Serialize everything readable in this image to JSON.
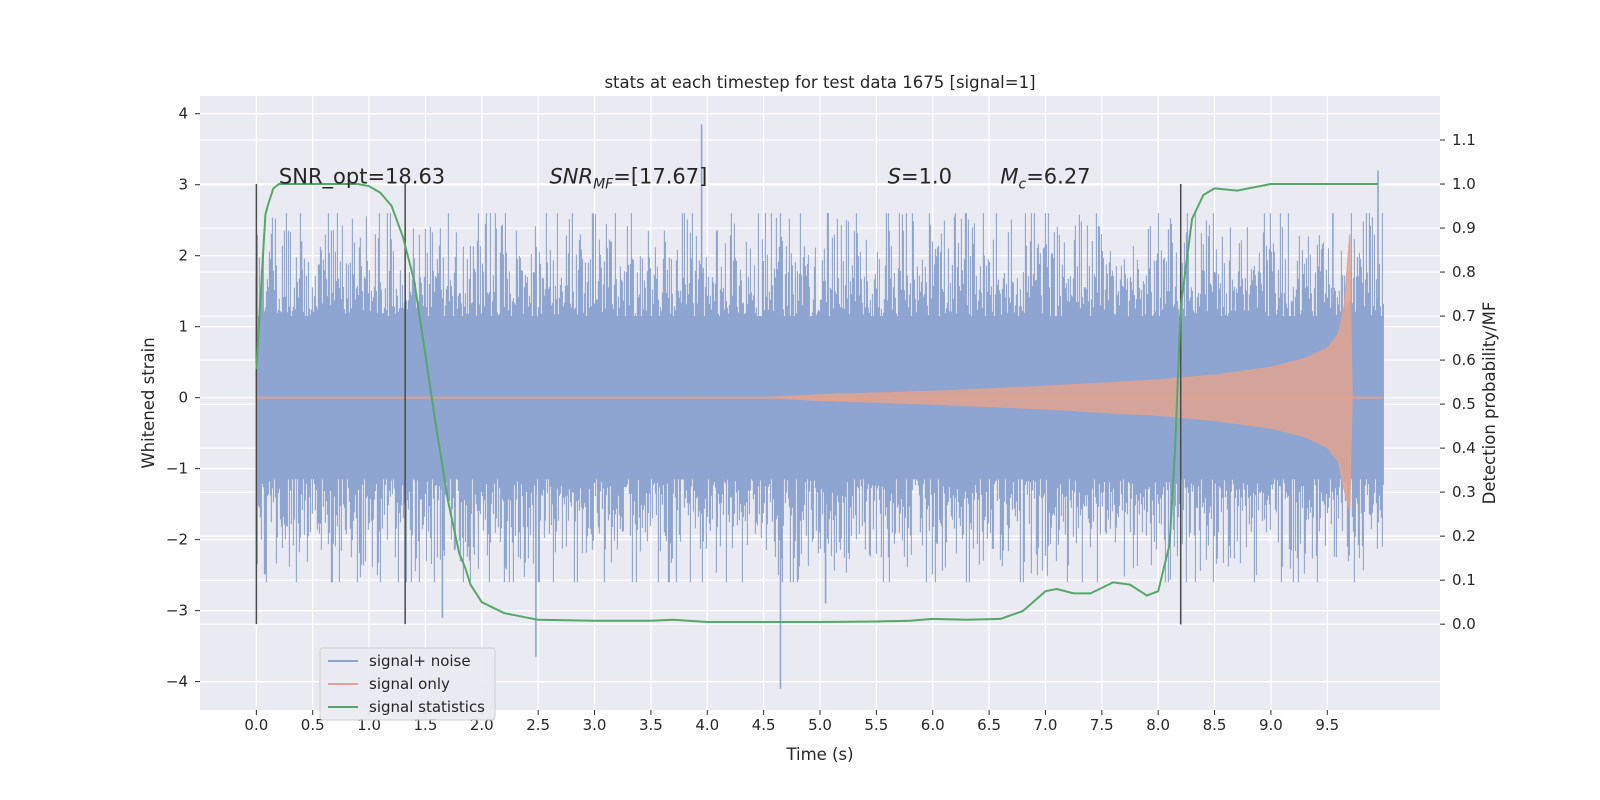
{
  "chart_data": {
    "type": "line",
    "title": "stats at each timestep for test data 1675 [signal=1]",
    "xlabel": "Time (s)",
    "ylabel": "Whitened strain",
    "ylabel_right": "Detection probability/MF",
    "xlim": [
      -0.5,
      10.5
    ],
    "ylim": [
      -4.4,
      4.25
    ],
    "ylim_right": [
      -0.195,
      1.2
    ],
    "x_ticks": [
      "0.0",
      "0.5",
      "1.0",
      "1.5",
      "2.0",
      "2.5",
      "3.0",
      "3.5",
      "4.0",
      "4.5",
      "5.0",
      "5.5",
      "6.0",
      "6.5",
      "7.0",
      "7.5",
      "8.0",
      "8.5",
      "9.0",
      "9.5"
    ],
    "y_ticks": [
      "−4",
      "−3",
      "−2",
      "−1",
      "0",
      "1",
      "2",
      "3",
      "4"
    ],
    "y_ticks_right": [
      "0.0",
      "0.1",
      "0.2",
      "0.3",
      "0.4",
      "0.5",
      "0.6",
      "0.7",
      "0.8",
      "0.9",
      "1.0",
      "1.1"
    ],
    "grid": true,
    "legend_position": "lower-left",
    "annotations": [
      {
        "text": "SNR_opt=18.63",
        "x": 0.2,
        "y": 3.1
      },
      {
        "text": "SNR",
        "sub": "MF",
        "rest": "=[17.67]",
        "x": 2.6,
        "y": 3.1
      },
      {
        "text": "S",
        "rest": "=1.0",
        "x": 5.6,
        "y": 3.1
      },
      {
        "text": "M",
        "sub": "c",
        "rest": "=6.27",
        "x": 6.6,
        "y": 3.1
      }
    ],
    "vertical_lines": [
      0.0,
      1.32,
      8.2
    ],
    "series": [
      {
        "name": "signal+ noise",
        "color": "#8fa5d1",
        "x_range": [
          0.0,
          10.0
        ],
        "envelope_core": 1.15,
        "envelope_peak": 2.6,
        "notable_extremes": [
          [
            0.0,
            1.7
          ],
          [
            0.4,
            2.2
          ],
          [
            1.65,
            -3.1
          ],
          [
            2.48,
            -3.65
          ],
          [
            3.95,
            3.85
          ],
          [
            4.65,
            -4.1
          ],
          [
            5.05,
            -2.9
          ],
          [
            8.2,
            -3.2
          ],
          [
            9.55,
            2.6
          ],
          [
            9.95,
            3.2
          ]
        ]
      },
      {
        "name": "signal only",
        "color": "#e0a290",
        "x_range": [
          0.0,
          10.0
        ],
        "chirp_start": 4.5,
        "chirp_peak_time": 9.7,
        "amplitudes": [
          [
            4.5,
            0.0
          ],
          [
            5.0,
            0.04
          ],
          [
            6.0,
            0.09
          ],
          [
            7.0,
            0.16
          ],
          [
            8.0,
            0.25
          ],
          [
            8.5,
            0.32
          ],
          [
            9.0,
            0.43
          ],
          [
            9.3,
            0.55
          ],
          [
            9.5,
            0.7
          ],
          [
            9.6,
            0.9
          ],
          [
            9.65,
            1.3
          ],
          [
            9.7,
            2.3
          ],
          [
            9.72,
            0.0
          ],
          [
            10.0,
            0.0
          ]
        ]
      },
      {
        "name": "signal statistics",
        "color": "#55a868",
        "axis": "right",
        "x": [
          0.0,
          0.05,
          0.08,
          0.1,
          0.15,
          0.2,
          0.3,
          0.6,
          0.9,
          1.0,
          1.1,
          1.2,
          1.3,
          1.4,
          1.5,
          1.6,
          1.7,
          1.8,
          1.85,
          1.9,
          2.0,
          2.2,
          2.5,
          3.0,
          3.5,
          3.7,
          4.0,
          4.5,
          5.0,
          5.5,
          5.8,
          6.0,
          6.3,
          6.6,
          6.8,
          7.0,
          7.1,
          7.25,
          7.4,
          7.6,
          7.75,
          7.9,
          8.0,
          8.1,
          8.15,
          8.2,
          8.3,
          8.4,
          8.5,
          8.7,
          9.0,
          9.5,
          9.95
        ],
        "values": [
          0.58,
          0.8,
          0.93,
          0.95,
          0.99,
          1.0,
          1.0,
          1.0,
          1.0,
          0.995,
          0.98,
          0.95,
          0.88,
          0.78,
          0.61,
          0.44,
          0.28,
          0.16,
          0.13,
          0.09,
          0.05,
          0.025,
          0.01,
          0.008,
          0.008,
          0.01,
          0.005,
          0.005,
          0.005,
          0.006,
          0.008,
          0.012,
          0.01,
          0.012,
          0.03,
          0.075,
          0.08,
          0.07,
          0.07,
          0.095,
          0.09,
          0.065,
          0.075,
          0.18,
          0.4,
          0.72,
          0.92,
          0.975,
          0.99,
          0.985,
          1.0,
          1.0,
          1.0
        ]
      }
    ]
  }
}
